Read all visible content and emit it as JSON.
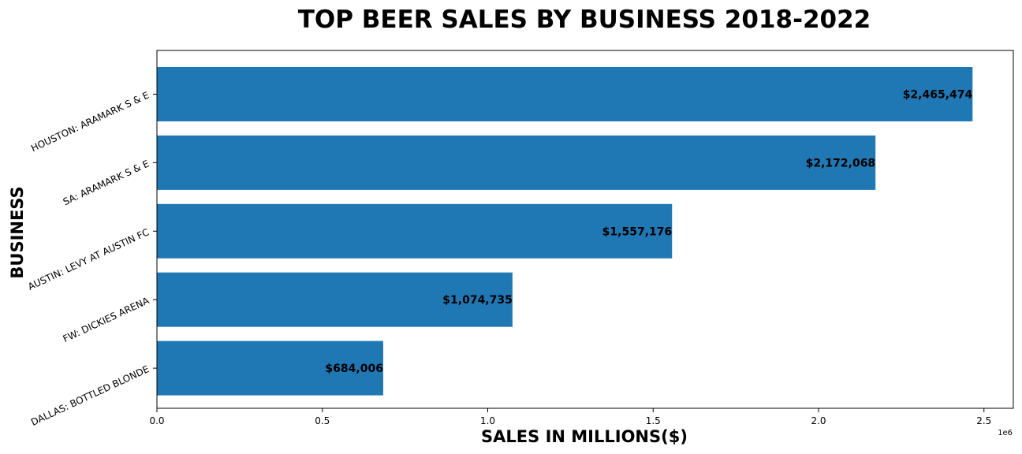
{
  "chart_data": {
    "type": "bar",
    "orientation": "horizontal",
    "title": "TOP BEER SALES BY BUSINESS 2018-2022",
    "xlabel": "SALES IN MILLIONS($)",
    "ylabel": "BUSINESS",
    "x_offset_label": "1e6",
    "categories": [
      "HOUSTON: ARAMARK S & E",
      "SA: ARAMARK S & E",
      "AUSTIN: LEVY AT AUSTIN FC",
      "FW: DICKIES ARENA",
      "DALLAS: BOTTLED BLONDE"
    ],
    "values": [
      2465474,
      2172068,
      1557176,
      1074735,
      684006
    ],
    "data_labels": [
      "$2,465,474",
      "$2,172,068",
      "$1,557,176",
      "$1,074,735",
      "$684,006"
    ],
    "xlim": [
      0,
      2588748
    ],
    "x_ticks": [
      0,
      500000,
      1000000,
      1500000,
      2000000,
      2500000
    ],
    "x_tick_labels": [
      "0.0",
      "0.5",
      "1.0",
      "1.5",
      "2.0",
      "2.5"
    ],
    "grid": false,
    "bar_color": "#1f77b4"
  }
}
